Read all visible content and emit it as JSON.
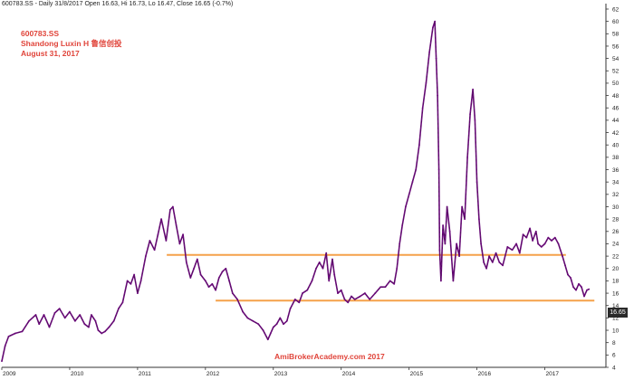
{
  "header": {
    "info_line": "600783.SS - Daily 31/8/2017 Open 16.63, Hi 16.73, Lo 16.47, Close 16.65 (-0.7%)"
  },
  "title_block": {
    "ticker": "600783.SS",
    "name": "Shandong Luxin H 鲁信创投",
    "date": "August 31, 2017"
  },
  "watermark": "AmiBrokerAcademy.com  2017",
  "last_price_label": "16.65",
  "colors": {
    "price_line": "#6a0a7a",
    "price_highlight": "#1a1a1a",
    "support_resistance": "#f5a14a",
    "text_red": "#e0443a"
  },
  "chart_data": {
    "type": "line",
    "title": "600783.SS - Daily 31/8/2017 Open 16.63, Hi 16.73, Lo 16.47, Close 16.65 (-0.7%)",
    "xlabel": "",
    "ylabel": "",
    "xlim": [
      2009.0,
      2017.9
    ],
    "ylim": [
      4,
      62
    ],
    "grid": false,
    "y_ticks": [
      4,
      6,
      8,
      10,
      12,
      14,
      16,
      18,
      20,
      22,
      24,
      26,
      28,
      30,
      32,
      34,
      36,
      38,
      40,
      42,
      44,
      46,
      48,
      50,
      52,
      54,
      56,
      58,
      60,
      62
    ],
    "x_tick_labels": [
      {
        "label": "2009",
        "x": 2009.0
      },
      {
        "label": "2010",
        "x": 2010.0
      },
      {
        "label": "2011",
        "x": 2011.0
      },
      {
        "label": "2012",
        "x": 2012.0
      },
      {
        "label": "2013",
        "x": 2013.0
      },
      {
        "label": "2014",
        "x": 2014.0
      },
      {
        "label": "2015",
        "x": 2015.0
      },
      {
        "label": "2016",
        "x": 2016.0
      },
      {
        "label": "2017",
        "x": 2017.0
      }
    ],
    "series": [
      {
        "points": [
          [
            2009.0,
            5.0
          ],
          [
            2009.05,
            7.5
          ],
          [
            2009.1,
            9.0
          ],
          [
            2009.2,
            9.5
          ],
          [
            2009.3,
            9.8
          ],
          [
            2009.4,
            11.5
          ],
          [
            2009.5,
            12.5
          ],
          [
            2009.55,
            11.0
          ],
          [
            2009.62,
            12.5
          ],
          [
            2009.7,
            10.5
          ],
          [
            2009.78,
            12.8
          ],
          [
            2009.85,
            13.5
          ],
          [
            2009.93,
            12.0
          ],
          [
            2010.0,
            13.0
          ],
          [
            2010.08,
            11.5
          ],
          [
            2010.15,
            12.5
          ],
          [
            2010.22,
            11.0
          ],
          [
            2010.28,
            10.5
          ],
          [
            2010.32,
            12.5
          ],
          [
            2010.38,
            11.5
          ],
          [
            2010.42,
            10.0
          ],
          [
            2010.47,
            9.5
          ],
          [
            2010.52,
            9.8
          ],
          [
            2010.58,
            10.5
          ],
          [
            2010.65,
            11.5
          ],
          [
            2010.72,
            13.5
          ],
          [
            2010.78,
            14.5
          ],
          [
            2010.85,
            18.0
          ],
          [
            2010.9,
            17.5
          ],
          [
            2010.95,
            19.0
          ],
          [
            2011.0,
            16.0
          ],
          [
            2011.05,
            18.0
          ],
          [
            2011.12,
            22.0
          ],
          [
            2011.18,
            24.5
          ],
          [
            2011.25,
            23.0
          ],
          [
            2011.3,
            25.5
          ],
          [
            2011.35,
            28.0
          ],
          [
            2011.42,
            24.5
          ],
          [
            2011.48,
            29.5
          ],
          [
            2011.52,
            30.0
          ],
          [
            2011.57,
            27.0
          ],
          [
            2011.62,
            24.0
          ],
          [
            2011.67,
            25.5
          ],
          [
            2011.72,
            21.0
          ],
          [
            2011.78,
            18.5
          ],
          [
            2011.83,
            20.0
          ],
          [
            2011.88,
            21.5
          ],
          [
            2011.93,
            19.0
          ],
          [
            2012.0,
            18.0
          ],
          [
            2012.05,
            17.0
          ],
          [
            2012.1,
            17.5
          ],
          [
            2012.15,
            16.5
          ],
          [
            2012.2,
            18.5
          ],
          [
            2012.25,
            19.5
          ],
          [
            2012.3,
            20.0
          ],
          [
            2012.35,
            18.0
          ],
          [
            2012.4,
            16.0
          ],
          [
            2012.47,
            15.0
          ],
          [
            2012.55,
            13.0
          ],
          [
            2012.62,
            12.0
          ],
          [
            2012.7,
            11.5
          ],
          [
            2012.78,
            11.0
          ],
          [
            2012.85,
            10.0
          ],
          [
            2012.92,
            8.5
          ],
          [
            2012.96,
            9.5
          ],
          [
            2013.0,
            10.5
          ],
          [
            2013.05,
            11.0
          ],
          [
            2013.1,
            12.0
          ],
          [
            2013.15,
            11.0
          ],
          [
            2013.2,
            11.5
          ],
          [
            2013.25,
            13.5
          ],
          [
            2013.32,
            15.0
          ],
          [
            2013.38,
            14.5
          ],
          [
            2013.43,
            16.0
          ],
          [
            2013.5,
            16.5
          ],
          [
            2013.57,
            18.0
          ],
          [
            2013.63,
            20.0
          ],
          [
            2013.68,
            21.0
          ],
          [
            2013.73,
            20.0
          ],
          [
            2013.78,
            22.5
          ],
          [
            2013.82,
            18.0
          ],
          [
            2013.87,
            21.5
          ],
          [
            2013.9,
            19.0
          ],
          [
            2013.95,
            16.0
          ],
          [
            2014.0,
            16.5
          ],
          [
            2014.05,
            15.0
          ],
          [
            2014.1,
            14.5
          ],
          [
            2014.15,
            15.5
          ],
          [
            2014.2,
            15.0
          ],
          [
            2014.28,
            15.5
          ],
          [
            2014.35,
            16.0
          ],
          [
            2014.42,
            15.0
          ],
          [
            2014.5,
            16.0
          ],
          [
            2014.58,
            17.0
          ],
          [
            2014.65,
            17.0
          ],
          [
            2014.72,
            18.0
          ],
          [
            2014.78,
            17.5
          ],
          [
            2014.82,
            20.0
          ],
          [
            2014.86,
            24.0
          ],
          [
            2014.9,
            27.0
          ],
          [
            2014.95,
            30.0
          ],
          [
            2015.0,
            32.0
          ],
          [
            2015.05,
            34.0
          ],
          [
            2015.1,
            36.0
          ],
          [
            2015.15,
            40.0
          ],
          [
            2015.2,
            46.0
          ],
          [
            2015.25,
            50.0
          ],
          [
            2015.3,
            55.0
          ],
          [
            2015.35,
            59.0
          ],
          [
            2015.38,
            60.0
          ],
          [
            2015.4,
            54.0
          ],
          [
            2015.42,
            48.0
          ],
          [
            2015.44,
            36.0
          ],
          [
            2015.45,
            23.0
          ],
          [
            2015.47,
            18.0
          ],
          [
            2015.5,
            27.0
          ],
          [
            2015.53,
            24.0
          ],
          [
            2015.56,
            30.0
          ],
          [
            2015.6,
            26.0
          ],
          [
            2015.65,
            18.0
          ],
          [
            2015.7,
            24.0
          ],
          [
            2015.74,
            22.0
          ],
          [
            2015.78,
            30.0
          ],
          [
            2015.82,
            28.0
          ],
          [
            2015.86,
            38.0
          ],
          [
            2015.9,
            45.0
          ],
          [
            2015.94,
            49.0
          ],
          [
            2015.97,
            44.0
          ],
          [
            2016.0,
            34.0
          ],
          [
            2016.03,
            28.0
          ],
          [
            2016.06,
            24.0
          ],
          [
            2016.1,
            21.0
          ],
          [
            2016.14,
            20.0
          ],
          [
            2016.18,
            22.0
          ],
          [
            2016.23,
            21.0
          ],
          [
            2016.28,
            22.5
          ],
          [
            2016.33,
            21.0
          ],
          [
            2016.38,
            20.5
          ],
          [
            2016.45,
            23.5
          ],
          [
            2016.52,
            23.0
          ],
          [
            2016.58,
            24.0
          ],
          [
            2016.63,
            22.5
          ],
          [
            2016.68,
            25.5
          ],
          [
            2016.73,
            25.0
          ],
          [
            2016.78,
            26.5
          ],
          [
            2016.82,
            24.5
          ],
          [
            2016.87,
            26.0
          ],
          [
            2016.9,
            24.0
          ],
          [
            2016.95,
            23.5
          ],
          [
            2017.0,
            24.0
          ],
          [
            2017.05,
            25.0
          ],
          [
            2017.1,
            24.5
          ],
          [
            2017.15,
            25.0
          ],
          [
            2017.2,
            24.0
          ],
          [
            2017.26,
            22.0
          ],
          [
            2017.3,
            20.5
          ],
          [
            2017.34,
            19.0
          ],
          [
            2017.38,
            18.5
          ],
          [
            2017.42,
            17.0
          ],
          [
            2017.46,
            16.5
          ],
          [
            2017.5,
            17.5
          ],
          [
            2017.54,
            17.0
          ],
          [
            2017.58,
            15.5
          ],
          [
            2017.62,
            16.5
          ],
          [
            2017.65,
            16.65
          ]
        ]
      }
    ],
    "horizontal_lines": [
      {
        "y": 22.2,
        "x_start": 2011.43,
        "x_end": 2017.31
      },
      {
        "y": 14.8,
        "x_start": 2012.15,
        "x_end": 2017.73
      }
    ],
    "annotations": [
      "600783.SS",
      "Shandong Luxin H 鲁信创投",
      "August 31, 2017",
      "AmiBrokerAcademy.com  2017"
    ]
  }
}
